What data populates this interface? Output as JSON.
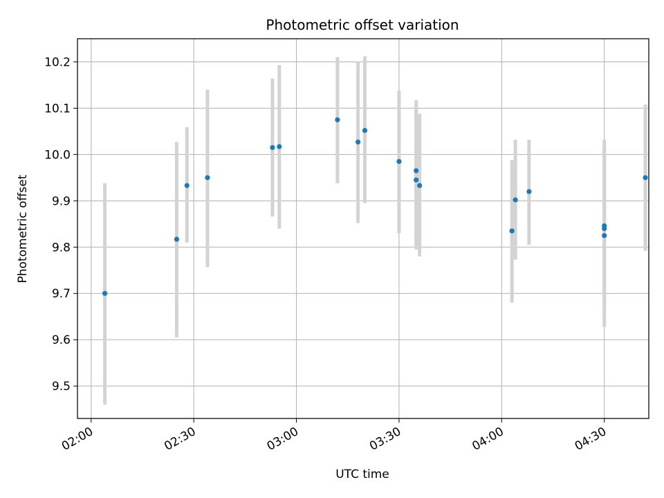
{
  "chart_data": {
    "type": "scatter",
    "title": "Photometric offset variation",
    "xlabel": "UTC time",
    "ylabel": "Photometric offset",
    "x_ticks": [
      "02:00",
      "02:30",
      "03:00",
      "03:30",
      "04:00",
      "04:30"
    ],
    "y_ticks": [
      "9.5",
      "9.6",
      "9.7",
      "9.8",
      "9.9",
      "10.0",
      "10.1",
      "10.2"
    ],
    "xlim": [
      "01:56",
      "04:43"
    ],
    "ylim": [
      9.43,
      10.25
    ],
    "grid": true,
    "colors": {
      "point": "#1f77b4",
      "errorbar": "#d3d3d3",
      "grid": "#b0b0b0"
    },
    "points": [
      {
        "time": "02:04",
        "y": 9.7,
        "ylow": 9.46,
        "yhigh": 9.938
      },
      {
        "time": "02:25",
        "y": 9.817,
        "ylow": 9.605,
        "yhigh": 10.027
      },
      {
        "time": "02:28",
        "y": 9.933,
        "ylow": 9.81,
        "yhigh": 10.059
      },
      {
        "time": "02:34",
        "y": 9.95,
        "ylow": 9.757,
        "yhigh": 10.14
      },
      {
        "time": "02:53",
        "y": 10.015,
        "ylow": 9.866,
        "yhigh": 10.164
      },
      {
        "time": "02:55",
        "y": 10.017,
        "ylow": 9.84,
        "yhigh": 10.193
      },
      {
        "time": "03:12",
        "y": 10.075,
        "ylow": 9.938,
        "yhigh": 10.21
      },
      {
        "time": "03:18",
        "y": 10.027,
        "ylow": 9.852,
        "yhigh": 10.2
      },
      {
        "time": "03:20",
        "y": 10.052,
        "ylow": 9.895,
        "yhigh": 10.212
      },
      {
        "time": "03:30",
        "y": 9.985,
        "ylow": 9.83,
        "yhigh": 10.138
      },
      {
        "time": "03:35",
        "y": 9.965,
        "ylow": 9.81,
        "yhigh": 10.117
      },
      {
        "time": "03:35",
        "y": 9.945,
        "ylow": 9.795,
        "yhigh": 10.095
      },
      {
        "time": "03:36",
        "y": 9.933,
        "ylow": 9.78,
        "yhigh": 10.088
      },
      {
        "time": "04:03",
        "y": 9.835,
        "ylow": 9.68,
        "yhigh": 9.988
      },
      {
        "time": "04:04",
        "y": 9.902,
        "ylow": 9.773,
        "yhigh": 10.032
      },
      {
        "time": "04:08",
        "y": 9.92,
        "ylow": 9.805,
        "yhigh": 10.032
      },
      {
        "time": "04:30",
        "y": 9.825,
        "ylow": 9.628,
        "yhigh": 10.032
      },
      {
        "time": "04:30",
        "y": 9.84,
        "ylow": 9.672,
        "yhigh": 10.018
      },
      {
        "time": "04:30",
        "y": 9.846,
        "ylow": 9.675,
        "yhigh": 10.018
      },
      {
        "time": "04:42",
        "y": 9.95,
        "ylow": 9.792,
        "yhigh": 10.108
      }
    ]
  }
}
